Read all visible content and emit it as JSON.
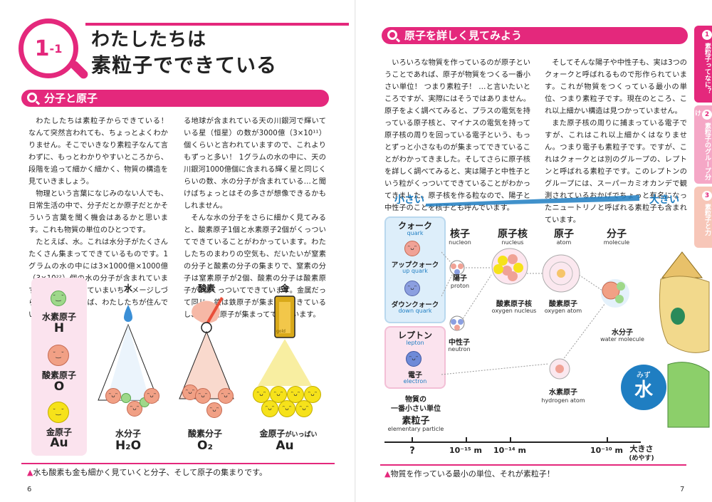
{
  "left_page": {
    "chapter_number": "1",
    "chapter_sub": "-1",
    "title_line1": "わたしたちは",
    "title_line2": "素粒子でできている",
    "section_title": "分子と原子",
    "col1": [
      "わたしたちは素粒子からできている！ なんて突然言われても、ちょっとよくわかりません。そこでいきなり素粒子なんて言わずに、もっとわかりやすいところから、段階を追って細かく細かく、物質の構造を見ていきましょう。",
      "物理という言葉になじみのない人でも、日常生活の中で、分子だとか原子だとかそういう言葉を聞く機会はあるかと思います。これも物質の単位のひとつです。",
      "たとえば、水。これは水分子がたくさんたくさん集まってできているものです。1グラムの水の中には3×1000億×1000億（3×10²²）個の水の分子が含まれています。数が大きすぎていまいちイメージしづらいですが、例えば、わたしたちが住んでい"
    ],
    "col2": [
      "る地球が含まれている天の川銀河で輝いている星（恒星）の数が3000億（3×10¹¹）個くらいと言われていますので、これよりもずっと多い！ 1グラムの水の中に、天の川銀河1000億個に含まれる輝く星と同じくらいの数、水の分子が含まれている…と聞けばちょっとはその多さが想像できるかもしれません。",
      "そんな水の分子をさらに細かく見てみると、酸素原子1個と水素原子2個がくっついてできていることがわかっています。わたしたちのまわりの空気も、だいたいが窒素の分子と酸素の分子の集まりで、窒素の分子は窒素原子が2個、酸素の分子は酸素原子が2個くっついてできています。金属だって同じ。鉄は鉄原子が集まってできているし、金は金原子が集まってできています。"
    ],
    "elements": [
      {
        "name": "水素原子",
        "symbol": "H"
      },
      {
        "name": "酸素原子",
        "symbol": "O"
      },
      {
        "name": "金原子",
        "symbol": "Au"
      }
    ],
    "columns": [
      {
        "head": "水",
        "label": "水分子",
        "formula": "H₂O"
      },
      {
        "head": "酸素",
        "label": "酸素分子",
        "formula": "O₂"
      },
      {
        "head": "金",
        "label": "金原子",
        "label_suffix": "がいっぱい",
        "formula": "Au"
      }
    ],
    "gold_bar_text": "gold",
    "caption": "水も酸素も金も細かく見ていくと分子、そして原子の集まりです。",
    "page_number": "6"
  },
  "right_page": {
    "section_title": "原子を詳しく見てみよう",
    "col1": [
      "いろいろな物質を作っているのが原子ということであれば、原子が物質をつくる一番小さい単位！ つまり素粒子！ …と言いたいところですが、実際にはそうではありません。原子をよく調べてみると、プラスの電気を持っている原子核と、マイナスの電気を持って原子核の周りを回っている電子という、もっとずっと小さなものが集まってできていることがわかってきました。そしてさらに原子核を詳しく調べてみると、実は陽子と中性子という粒がくっついてできていることがわかってきました。原子核を作る粒なので、陽子と中性子のことを核子とも呼んでいます。"
    ],
    "col2": [
      "そしてそんな陽子や中性子も、実は3つのクォークと呼ばれるもので形作られています。これが物質をつくっている最小の単位、つまり素粒子です。現在のところ、これ以上細かい構造は見つかっていません。",
      "また原子核の周りに捕まっている電子ですが、これはこれ以上細かくはなりません。つまり電子も素粒子です。ですが、これはクォークとは別のグループの、レプトンと呼ばれる素粒子です。このレプトンのグループには、スーパーカミオカンデで観測されているおかげでちょっと有名になったニュートリノと呼ばれる素粒子も含まれています。"
    ],
    "scale_small": "小さい",
    "scale_big": "大きい",
    "quark_box": {
      "title": "クォーク",
      "en": "quark",
      "up": "アップクォーク",
      "up_en": "up quark",
      "down": "ダウンクォーク",
      "down_en": "down quark"
    },
    "lepton_box": {
      "title": "レプトン",
      "en": "lepton",
      "electron": "電子",
      "electron_en": "electron"
    },
    "levels": [
      {
        "jp": "核子",
        "en": "nucleon"
      },
      {
        "jp": "原子核",
        "en": "nucleus"
      },
      {
        "jp": "原子",
        "en": "atom"
      },
      {
        "jp": "分子",
        "en": "molecule"
      }
    ],
    "proton": {
      "jp": "陽子",
      "en": "proton"
    },
    "neutron": {
      "jp": "中性子",
      "en": "neutron"
    },
    "oxygen_nucleus": {
      "jp": "酸素原子核",
      "en": "oxygen nucleus"
    },
    "oxygen_atom": {
      "jp": "酸素原子",
      "en": "oxygen atom"
    },
    "hydrogen_atom": {
      "jp": "水素原子",
      "en": "hydrogen atom"
    },
    "water_molecule": {
      "jp": "水分子",
      "en": "water molecule"
    },
    "elementary": {
      "line1": "物質の",
      "line2": "一番小さい単位",
      "line3": "素粒子",
      "en": "elementary particle"
    },
    "axis": {
      "q": "?",
      "t1": "10⁻¹⁵ m",
      "t2": "10⁻¹⁴ m",
      "t3": "10⁻¹⁰ m",
      "size_label": "大きさ",
      "size_sub": "(めやす)"
    },
    "mizu_kana": "みず",
    "mizu_kanji": "水",
    "caption": "物質を作っている最小の単位、それが素粒子！",
    "page_number": "7",
    "side_tabs": [
      {
        "num": "1",
        "label": "素粒子ってなに？"
      },
      {
        "num": "2",
        "label": "素粒子のグループ分け"
      },
      {
        "num": "3",
        "label": "素粒子と力"
      }
    ]
  }
}
